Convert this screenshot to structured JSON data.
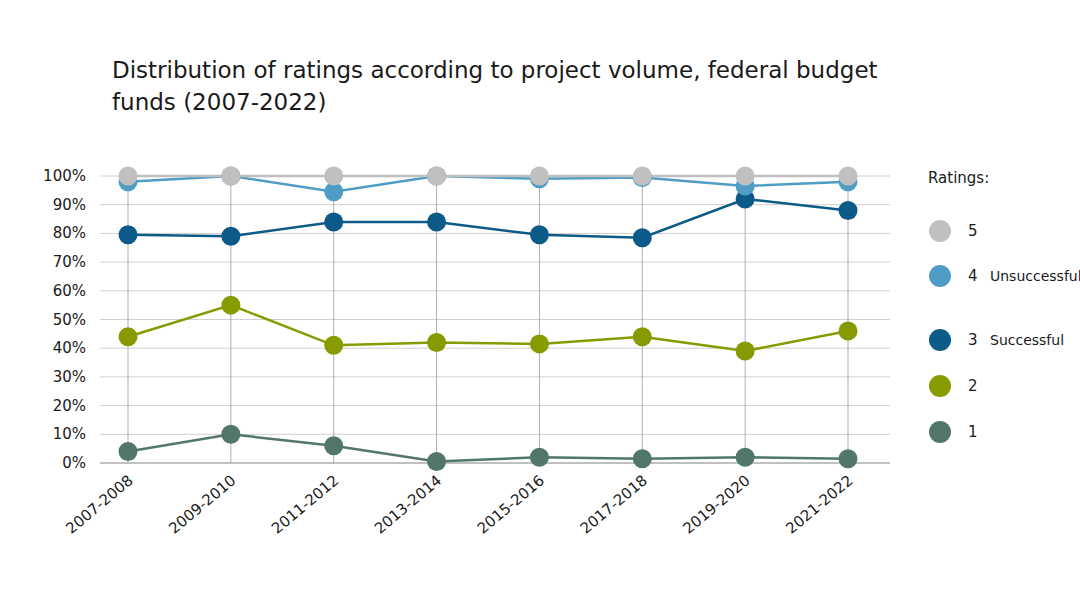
{
  "chart_data": {
    "type": "line",
    "stacked": true,
    "title": "Distribution of ratings according to project volume, federal budget funds (2007-2022)",
    "legend_title": "Ratings:",
    "categories": [
      "2007-2008",
      "2009-2010",
      "2011-2012",
      "2013-2014",
      "2015-2016",
      "2017-2018",
      "2019-2020",
      "2021-2022"
    ],
    "series": [
      {
        "name": "1",
        "color": "#52776a",
        "marker": "circle",
        "values": [
          4,
          10,
          6,
          0.5,
          2,
          1.5,
          2,
          1.5
        ]
      },
      {
        "name": "2",
        "color": "#879a00",
        "marker": "circle",
        "values": [
          40,
          45,
          35,
          41.5,
          39.5,
          42.5,
          37,
          44.5
        ]
      },
      {
        "name": "3",
        "color": "#0b5a87",
        "marker": "circle",
        "values": [
          35.5,
          24,
          43,
          42,
          38,
          34.5,
          53,
          42
        ]
      },
      {
        "name": "4",
        "color": "#4f9dc4",
        "marker": "circle",
        "values": [
          18.5,
          21,
          10.5,
          16,
          19.5,
          21,
          4.5,
          10
        ]
      },
      {
        "name": "5",
        "color": "#c0c0c0",
        "marker": "circle",
        "values": [
          2,
          0,
          5.5,
          0,
          1,
          0.5,
          3.5,
          2
        ]
      }
    ],
    "annotations": [
      {
        "series": "4",
        "text": "Unsuccessful"
      },
      {
        "series": "3",
        "text": "Successful"
      }
    ],
    "ylim": [
      0,
      100
    ],
    "yticks": [
      {
        "value": 0,
        "label": "0%"
      },
      {
        "value": 10,
        "label": "10%"
      },
      {
        "value": 20,
        "label": "20%"
      },
      {
        "value": 30,
        "label": "30%"
      },
      {
        "value": 40,
        "label": "40%"
      },
      {
        "value": 50,
        "label": "50%"
      },
      {
        "value": 60,
        "label": "60%"
      },
      {
        "value": 70,
        "label": "70%"
      },
      {
        "value": 80,
        "label": "80%"
      },
      {
        "value": 90,
        "label": "90%"
      },
      {
        "value": 100,
        "label": "100%"
      }
    ],
    "grid": true,
    "legend": "right"
  }
}
